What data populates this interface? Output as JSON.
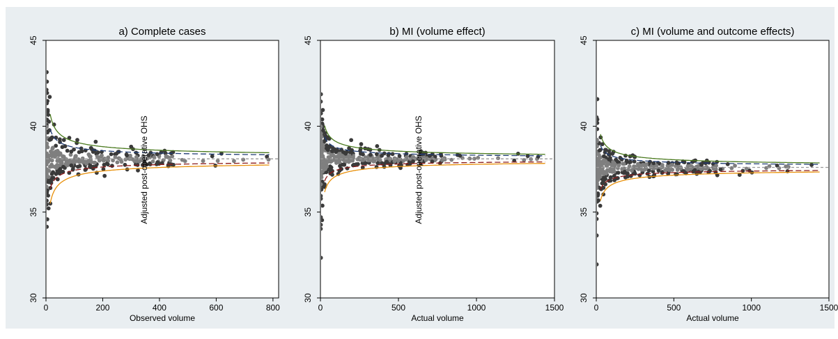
{
  "colors": {
    "background": "#e9eef1",
    "plot_background": "#ffffff",
    "upper_outer_limit": "#4a7a1e",
    "upper_inner_limit": "#1f3b73",
    "lower_inner_limit": "#8b1a1a",
    "lower_outer_limit": "#e8900a",
    "mean_line": "#9a9a9a",
    "points_within": "#7f7f7f",
    "points_outside": "#3a3a3a"
  },
  "figure_labels": {
    "panel_a_ylabel": "Adjusted post-operative OHS",
    "panel_b_ylabel": "Adjusted post-operative OHS"
  },
  "chart_data": [
    {
      "type": "scatter",
      "title": "a) Complete cases",
      "xlabel": "Observed volume",
      "ylabel": "Adjusted post-operative OHS",
      "xlim": [
        0,
        820
      ],
      "ylim": [
        30,
        45
      ],
      "xticks": [
        "0",
        "200",
        "400",
        "600",
        "800"
      ],
      "xtick_values": [
        0,
        200,
        400,
        600,
        800
      ],
      "yticks": [
        "30",
        "35",
        "40",
        "45"
      ],
      "ytick_values": [
        30,
        35,
        40,
        45
      ],
      "mean": 38.1,
      "funnel_width": 3.35,
      "sd_point": 4.5,
      "seed": 11,
      "n_points": 340,
      "point_xmax": 820,
      "series": [
        {
          "style": "solid",
          "color_key": "upper_outer_limit",
          "z": 3.0
        },
        {
          "style": "dashed",
          "color_key": "upper_inner_limit",
          "z": 2.0
        },
        {
          "style": "dashed",
          "color_key": "mean_line",
          "z": 0
        },
        {
          "style": "dashed",
          "color_key": "lower_inner_limit",
          "z": -2.0
        },
        {
          "style": "solid",
          "color_key": "lower_outer_limit",
          "z": -3.0
        }
      ],
      "grid": false,
      "legend": "none"
    },
    {
      "type": "scatter",
      "title": "b) MI (volume effect)",
      "xlabel": "Actual volume",
      "ylabel": "Adjusted post-operative OHS",
      "xlim": [
        0,
        1500
      ],
      "ylim": [
        30,
        45
      ],
      "xticks": [
        "0",
        "500",
        "1000",
        "1500"
      ],
      "xtick_values": [
        0,
        500,
        1000,
        1500
      ],
      "yticks": [
        "30",
        "35",
        "40",
        "45"
      ],
      "ytick_values": [
        30,
        35,
        40,
        45
      ],
      "mean": 38.1,
      "funnel_width": 3.35,
      "sd_point": 4.5,
      "seed": 23,
      "n_points": 360,
      "point_xmax": 1420,
      "series": [
        {
          "style": "solid",
          "color_key": "upper_outer_limit",
          "z": 3.0
        },
        {
          "style": "dashed",
          "color_key": "upper_inner_limit",
          "z": 2.0
        },
        {
          "style": "dashed",
          "color_key": "mean_line",
          "z": 0
        },
        {
          "style": "dashed",
          "color_key": "lower_inner_limit",
          "z": -2.0
        },
        {
          "style": "solid",
          "color_key": "lower_outer_limit",
          "z": -3.0
        }
      ],
      "grid": false,
      "legend": "none"
    },
    {
      "type": "scatter",
      "title": "c) MI (volume and outcome effects)",
      "xlabel": "Actual volume",
      "ylabel": "",
      "xlim": [
        0,
        1500
      ],
      "ylim": [
        30,
        45
      ],
      "xticks": [
        "0",
        "500",
        "1000",
        "1500"
      ],
      "xtick_values": [
        0,
        500,
        1000,
        1500
      ],
      "yticks": [
        "30",
        "35",
        "40",
        "45"
      ],
      "ytick_values": [
        30,
        35,
        40,
        45
      ],
      "mean": 37.6,
      "funnel_width": 3.35,
      "sd_point": 4.5,
      "seed": 37,
      "n_points": 360,
      "point_xmax": 1420,
      "series": [
        {
          "style": "solid",
          "color_key": "upper_outer_limit",
          "z": 3.0
        },
        {
          "style": "dashed",
          "color_key": "upper_inner_limit",
          "z": 2.0
        },
        {
          "style": "dashed",
          "color_key": "mean_line",
          "z": 0
        },
        {
          "style": "dashed",
          "color_key": "lower_inner_limit",
          "z": -2.0
        },
        {
          "style": "solid",
          "color_key": "lower_outer_limit",
          "z": -3.0
        }
      ],
      "grid": false,
      "legend": "none"
    }
  ]
}
